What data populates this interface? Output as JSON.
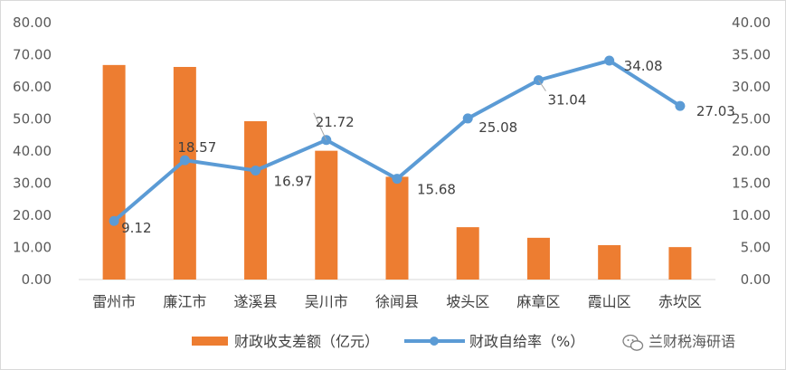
{
  "chart_data": {
    "type": "bar+line",
    "categories": [
      "雷州市",
      "廉江市",
      "遂溪县",
      "吴川市",
      "徐闻县",
      "坡头区",
      "麻章区",
      "霞山区",
      "赤坎区"
    ],
    "series": [
      {
        "name": "财政收支差额（亿元）",
        "type": "bar",
        "axis": "left",
        "color": "#ED7D31",
        "values": [
          66.8,
          66.2,
          49.3,
          40.1,
          32.0,
          16.3,
          13.0,
          10.7,
          10.1
        ]
      },
      {
        "name": "财政自给率（%）",
        "type": "line",
        "axis": "right",
        "color": "#5B9BD5",
        "values": [
          9.12,
          18.57,
          16.97,
          21.72,
          15.68,
          25.08,
          31.04,
          34.08,
          27.03
        ],
        "labels": [
          "9.12",
          "18.57",
          "16.97",
          "21.72",
          "15.68",
          "25.08",
          "31.04",
          "34.08",
          "27.03"
        ]
      }
    ],
    "y_left": {
      "ylim": [
        0,
        80
      ],
      "ticks": [
        "0.00",
        "10.00",
        "20.00",
        "30.00",
        "40.00",
        "50.00",
        "60.00",
        "70.00",
        "80.00"
      ]
    },
    "y_right": {
      "ylim": [
        0,
        40
      ],
      "ticks": [
        "0.00",
        "5.00",
        "10.00",
        "15.00",
        "20.00",
        "25.00",
        "30.00",
        "35.00",
        "40.00"
      ]
    },
    "grid": false,
    "legend": "bottom"
  },
  "watermark": {
    "text": "兰财税海研语",
    "icon": "wechat-icon"
  }
}
